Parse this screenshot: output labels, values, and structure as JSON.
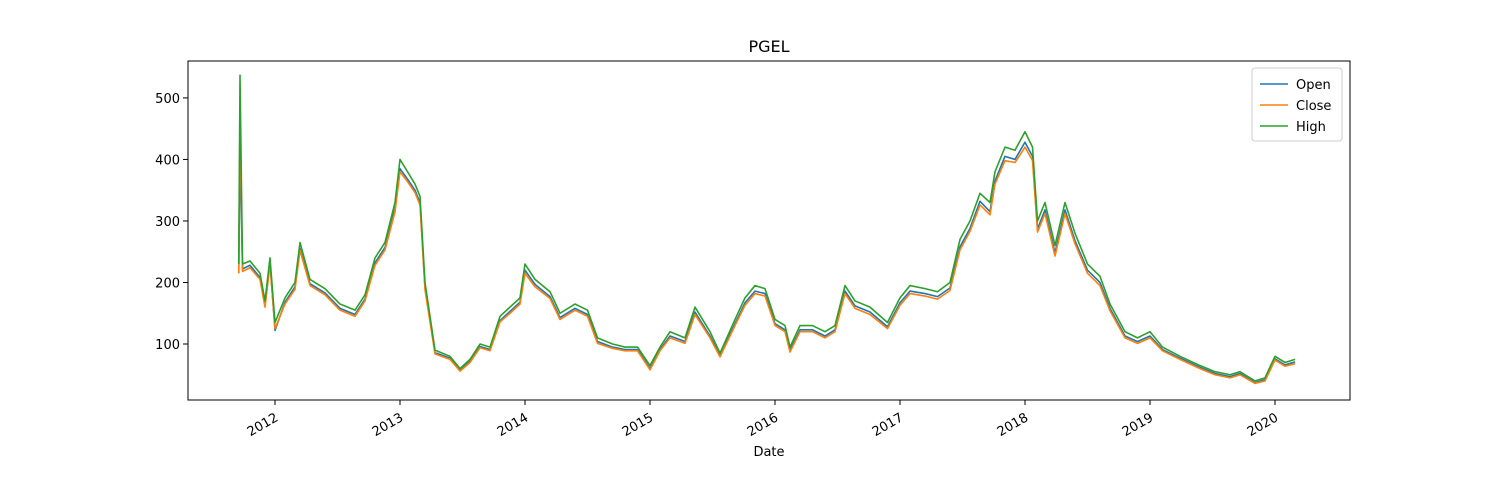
{
  "chart_data": {
    "type": "line",
    "title": "PGEL",
    "x_label": "Date",
    "x": [
      2011.71,
      2011.72,
      2011.74,
      2011.8,
      2011.88,
      2011.92,
      2011.96,
      2012,
      2012.08,
      2012.16,
      2012.2,
      2012.28,
      2012.4,
      2012.52,
      2012.64,
      2012.72,
      2012.8,
      2012.88,
      2012.96,
      2013,
      2013.06,
      2013.12,
      2013.16,
      2013.2,
      2013.28,
      2013.4,
      2013.48,
      2013.56,
      2013.64,
      2013.72,
      2013.8,
      2013.88,
      2013.96,
      2014,
      2014.08,
      2014.2,
      2014.28,
      2014.4,
      2014.5,
      2014.58,
      2014.7,
      2014.8,
      2014.9,
      2015,
      2015.08,
      2015.16,
      2015.28,
      2015.36,
      2015.48,
      2015.56,
      2015.68,
      2015.76,
      2015.84,
      2015.92,
      2016,
      2016.08,
      2016.12,
      2016.2,
      2016.3,
      2016.4,
      2016.48,
      2016.56,
      2016.64,
      2016.76,
      2016.9,
      2017,
      2017.08,
      2017.2,
      2017.3,
      2017.4,
      2017.48,
      2017.56,
      2017.64,
      2017.72,
      2017.76,
      2017.84,
      2017.92,
      2018,
      2018.06,
      2018.1,
      2018.16,
      2018.24,
      2018.32,
      2018.4,
      2018.5,
      2018.6,
      2018.68,
      2018.8,
      2018.9,
      2019,
      2019.1,
      2019.24,
      2019.4,
      2019.52,
      2019.64,
      2019.72,
      2019.84,
      2019.92,
      2020,
      2020.08,
      2020.16
    ],
    "series": [
      {
        "name": "Open",
        "color": "#1f77b4",
        "values": [
          215,
          420,
          222,
          228,
          208,
          163,
          233,
          122,
          168,
          193,
          255,
          198,
          183,
          158,
          148,
          173,
          232,
          257,
          320,
          385,
          368,
          350,
          330,
          192,
          86,
          77,
          57,
          72,
          96,
          91,
          138,
          153,
          168,
          220,
          197,
          177,
          143,
          158,
          148,
          104,
          95,
          91,
          91,
          60,
          91,
          113,
          104,
          152,
          113,
          81,
          133,
          167,
          186,
          182,
          133,
          123,
          90,
          123,
          123,
          113,
          123,
          186,
          162,
          152,
          128,
          167,
          186,
          182,
          177,
          191,
          258,
          288,
          332,
          315,
          365,
          405,
          400,
          428,
          405,
          287,
          318,
          248,
          318,
          268,
          220,
          200,
          158,
          113,
          104,
          113,
          91,
          77,
          62,
          52,
          47,
          52,
          37,
          42,
          76,
          66,
          71
        ]
      },
      {
        "name": "Close",
        "color": "#ff7f0e",
        "values": [
          215,
          480,
          218,
          224,
          205,
          160,
          229,
          125,
          165,
          189,
          252,
          195,
          180,
          155,
          145,
          170,
          228,
          253,
          315,
          380,
          364,
          346,
          326,
          188,
          84,
          75,
          56,
          70,
          94,
          89,
          136,
          150,
          165,
          215,
          193,
          174,
          140,
          155,
          145,
          101,
          93,
          89,
          89,
          58,
          89,
          110,
          101,
          148,
          110,
          79,
          130,
          163,
          182,
          178,
          130,
          120,
          87,
          120,
          120,
          110,
          120,
          182,
          158,
          148,
          125,
          163,
          182,
          178,
          173,
          187,
          253,
          283,
          326,
          310,
          360,
          398,
          395,
          420,
          398,
          282,
          312,
          243,
          312,
          263,
          215,
          195,
          154,
          110,
          101,
          110,
          89,
          75,
          60,
          50,
          45,
          50,
          36,
          40,
          74,
          64,
          68
        ]
      },
      {
        "name": "High",
        "color": "#2ca02c",
        "values": [
          230,
          537,
          230,
          235,
          215,
          170,
          240,
          135,
          175,
          200,
          265,
          205,
          190,
          165,
          155,
          180,
          240,
          265,
          330,
          400,
          380,
          360,
          340,
          200,
          90,
          80,
          60,
          75,
          100,
          95,
          145,
          160,
          175,
          230,
          205,
          185,
          150,
          165,
          155,
          110,
          100,
          95,
          95,
          65,
          95,
          120,
          110,
          160,
          120,
          85,
          140,
          175,
          195,
          190,
          140,
          130,
          95,
          130,
          130,
          120,
          130,
          195,
          170,
          160,
          135,
          175,
          195,
          190,
          185,
          200,
          270,
          300,
          345,
          330,
          380,
          420,
          415,
          445,
          420,
          300,
          330,
          260,
          330,
          280,
          230,
          210,
          165,
          120,
          110,
          120,
          95,
          80,
          65,
          55,
          50,
          55,
          40,
          45,
          80,
          70,
          75
        ]
      }
    ],
    "xlim": [
      2011.304,
      2020.6
    ],
    "xticks": [
      2012,
      2013,
      2014,
      2015,
      2016,
      2017,
      2018,
      2019,
      2020
    ],
    "ylim": [
      9,
      560
    ],
    "yticks": [
      100,
      200,
      300,
      400,
      500
    ],
    "legend": "upper right"
  }
}
